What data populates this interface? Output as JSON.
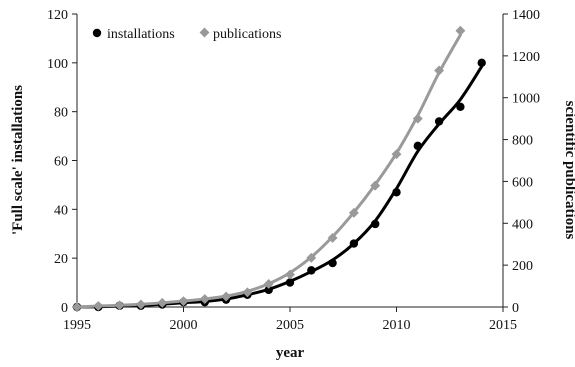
{
  "chart_data": {
    "type": "scatter",
    "xlabel": "year",
    "ylabel_left": "'Full scale' installations",
    "ylabel_right": "scientific publications",
    "xlim": [
      1995,
      2015
    ],
    "xticks": [
      "1995",
      "2000",
      "2005",
      "2010",
      "2015"
    ],
    "ylim_left": [
      0,
      120
    ],
    "yticks_left": [
      "0",
      "20",
      "40",
      "60",
      "80",
      "100",
      "120"
    ],
    "ylim_right": [
      0,
      1400
    ],
    "yticks_right": [
      "0",
      "200",
      "400",
      "600",
      "800",
      "1000",
      "1200",
      "1400"
    ],
    "grid": false,
    "legend_position": "top-left",
    "series": [
      {
        "name": "installations",
        "axis": "left",
        "marker": "circle",
        "color": "#000000",
        "x": [
          1995,
          1996,
          1997,
          1998,
          1999,
          2000,
          2001,
          2002,
          2003,
          2004,
          2005,
          2006,
          2007,
          2008,
          2009,
          2010,
          2011,
          2012,
          2013,
          2014
        ],
        "y": [
          0,
          0,
          0.5,
          0.5,
          1,
          2,
          2,
          3,
          5,
          7,
          10,
          15,
          18,
          26,
          34,
          47,
          66,
          76,
          82,
          100
        ],
        "fit_color": "#000000"
      },
      {
        "name": "publications",
        "axis": "right",
        "marker": "diamond",
        "color": "#999999",
        "x": [
          1995,
          1996,
          1997,
          1998,
          1999,
          2000,
          2001,
          2002,
          2003,
          2004,
          2005,
          2006,
          2007,
          2008,
          2009,
          2010,
          2011,
          2012,
          2013
        ],
        "y": [
          0,
          5,
          8,
          12,
          20,
          28,
          38,
          50,
          70,
          110,
          155,
          235,
          330,
          450,
          580,
          730,
          900,
          1130,
          1320
        ],
        "fit_color": "#9a9a9a"
      }
    ]
  }
}
